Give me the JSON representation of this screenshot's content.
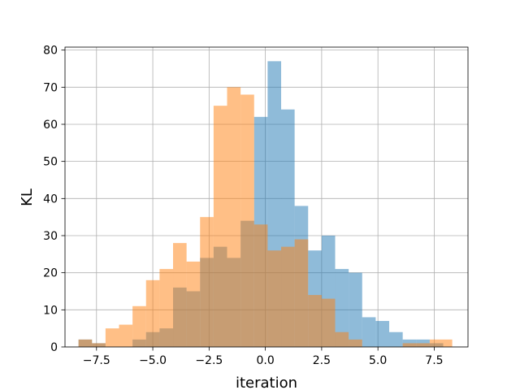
{
  "chart_data": {
    "type": "bar",
    "title": "",
    "xlabel": "iteration",
    "ylabel": "KL",
    "xlim": [
      -8.9,
      9.0
    ],
    "ylim": [
      0,
      80.8
    ],
    "xticks": [
      -7.5,
      -5.0,
      -2.5,
      0.0,
      2.5,
      5.0,
      7.5
    ],
    "xtick_labels": [
      "−7.5",
      "−5.0",
      "−2.5",
      "0.0",
      "2.5",
      "5.0",
      "7.5"
    ],
    "yticks": [
      0,
      10,
      20,
      30,
      40,
      50,
      60,
      70,
      80
    ],
    "ytick_labels": [
      "0",
      "10",
      "20",
      "30",
      "40",
      "50",
      "60",
      "70",
      "80"
    ],
    "grid": true,
    "series": [
      {
        "color": "#1f77b4",
        "alpha": 0.5,
        "bin_edges": [
          -8.3,
          -7.7,
          -7.1,
          -6.5,
          -5.9,
          -5.3,
          -4.7,
          -4.1,
          -3.5,
          -2.9,
          -2.3,
          -1.7,
          -1.1,
          -0.5,
          0.1,
          0.7,
          1.3,
          1.9,
          2.5,
          3.1,
          3.7,
          4.3,
          4.9,
          5.5,
          6.1,
          6.7,
          7.3,
          7.9
        ],
        "values": [
          2,
          1,
          0,
          0,
          2,
          4,
          5,
          16,
          15,
          24,
          27,
          24,
          34,
          62,
          77,
          64,
          38,
          26,
          30,
          21,
          20,
          8,
          7,
          4,
          2,
          2,
          1
        ]
      },
      {
        "color": "#ff7f0e",
        "alpha": 0.5,
        "bin_edges": [
          -8.3,
          -7.7,
          -7.1,
          -6.5,
          -5.9,
          -5.3,
          -4.7,
          -4.1,
          -3.5,
          -2.9,
          -2.3,
          -1.7,
          -1.1,
          -0.5,
          0.1,
          0.7,
          1.3,
          1.9,
          2.5,
          3.1,
          3.7,
          4.3,
          4.9,
          5.5,
          6.1,
          6.7,
          7.3,
          7.9,
          8.3
        ],
        "values": [
          2,
          1,
          5,
          6,
          11,
          18,
          21,
          28,
          23,
          35,
          65,
          70,
          68,
          33,
          26,
          27,
          29,
          14,
          13,
          4,
          2,
          0,
          0,
          0,
          1,
          1,
          2,
          2
        ]
      }
    ]
  }
}
